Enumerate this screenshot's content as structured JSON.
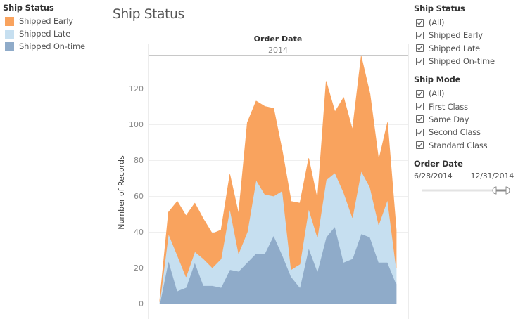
{
  "legend": {
    "title": "Ship Status",
    "items": [
      {
        "label": "Shipped Early",
        "color": "#f9a35e"
      },
      {
        "label": "Shipped Late",
        "color": "#c6dff0"
      },
      {
        "label": "Shipped On-time",
        "color": "#8fabc9"
      }
    ]
  },
  "page_title": "Ship Status",
  "filters": {
    "ship_status": {
      "title": "Ship Status",
      "options": [
        {
          "label": "(All)",
          "checked": true
        },
        {
          "label": "Shipped Early",
          "checked": true
        },
        {
          "label": "Shipped Late",
          "checked": true
        },
        {
          "label": "Shipped On-time",
          "checked": true
        }
      ]
    },
    "ship_mode": {
      "title": "Ship Mode",
      "options": [
        {
          "label": "(All)",
          "checked": true
        },
        {
          "label": "First Class",
          "checked": true
        },
        {
          "label": "Same Day",
          "checked": true
        },
        {
          "label": "Second Class",
          "checked": true
        },
        {
          "label": "Standard Class",
          "checked": true
        }
      ]
    },
    "order_date": {
      "title": "Order Date",
      "start": "6/28/2014",
      "end": "12/31/2014"
    }
  },
  "chart_data": {
    "type": "area",
    "stacked": true,
    "title": "Ship Status",
    "column_header_title": "Order Date",
    "column_header_value": "2014",
    "xlabel": "",
    "ylabel": "Number of Records",
    "ylim": [
      0,
      140
    ],
    "yticks": [
      0,
      20,
      40,
      60,
      80,
      100,
      120
    ],
    "grid": true,
    "legend_position": "top-left",
    "x": [
      1,
      2,
      3,
      4,
      5,
      6,
      7,
      8,
      9,
      10,
      11,
      12,
      13,
      14,
      15,
      16,
      17,
      18,
      19,
      20,
      21,
      22,
      23,
      24,
      25,
      26,
      27,
      28
    ],
    "series": [
      {
        "name": "Shipped On-time",
        "color": "#8fabc9",
        "values": [
          0,
          24,
          7,
          9,
          23,
          10,
          10,
          9,
          19,
          18,
          23,
          28,
          28,
          38,
          27,
          15,
          9,
          31,
          18,
          37,
          43,
          23,
          25,
          39,
          37,
          23,
          23,
          11
        ]
      },
      {
        "name": "Shipped Late",
        "color": "#c6dff0",
        "values": [
          1,
          15,
          20,
          6,
          6,
          15,
          10,
          16,
          34,
          10,
          17,
          41,
          33,
          22,
          36,
          4,
          13,
          22,
          19,
          32,
          30,
          39,
          23,
          35,
          28,
          21,
          35,
          9
        ]
      },
      {
        "name": "Shipped Early",
        "color": "#f9a35e",
        "values": [
          1,
          12,
          30,
          34,
          27,
          22,
          19,
          16,
          19,
          22,
          61,
          44,
          49,
          49,
          22,
          38,
          34,
          28,
          21,
          55,
          34,
          53,
          49,
          64,
          52,
          36,
          43,
          21
        ]
      }
    ],
    "totals": [
      2,
      51,
      57,
      49,
      56,
      47,
      39,
      41,
      72,
      50,
      101,
      113,
      110,
      109,
      85,
      57,
      56,
      81,
      58,
      124,
      107,
      115,
      97,
      138,
      117,
      80,
      101,
      41
    ]
  }
}
